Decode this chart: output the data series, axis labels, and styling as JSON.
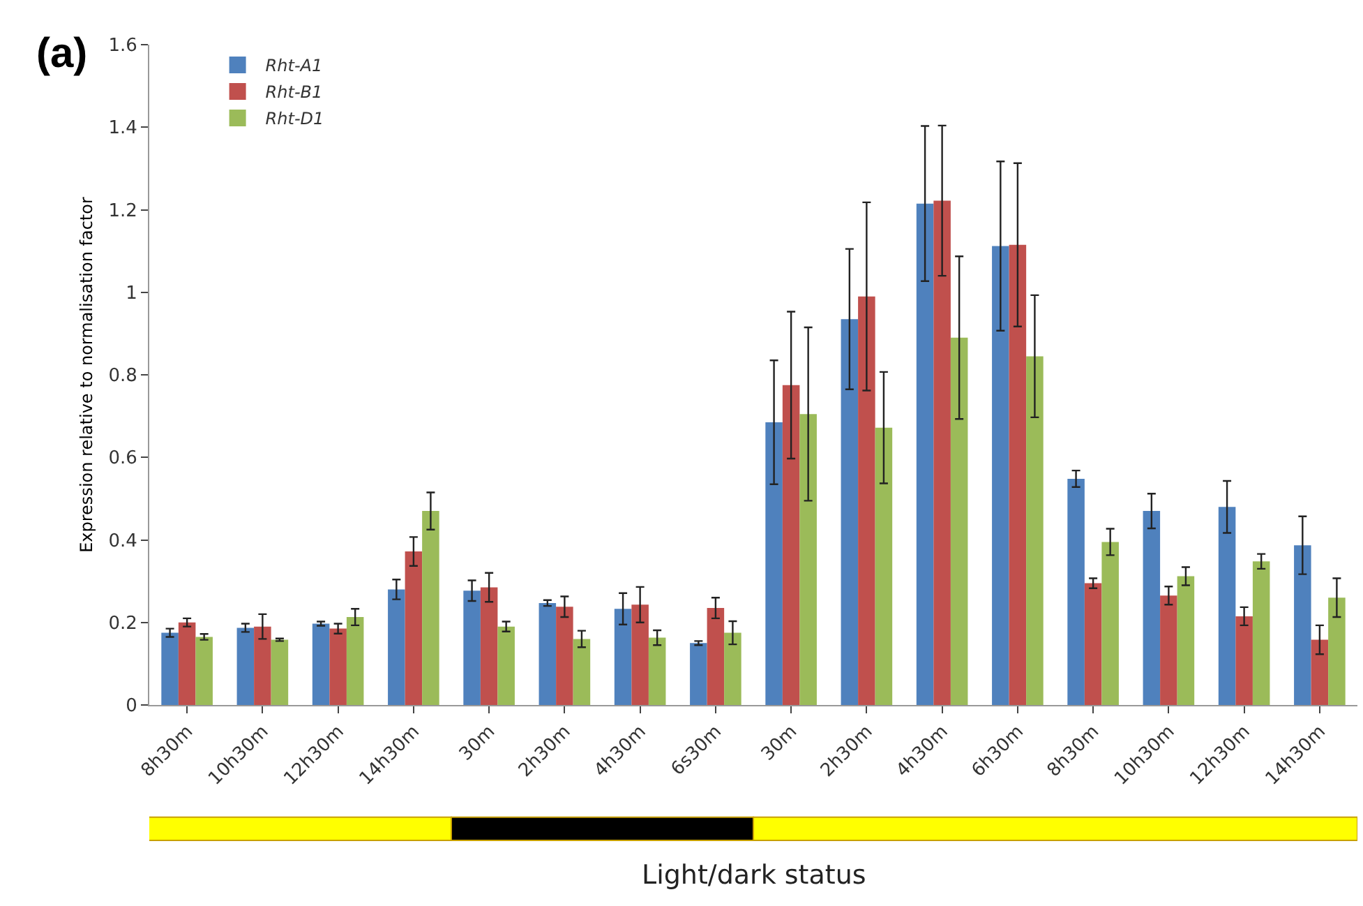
{
  "chart_data": {
    "type": "bar",
    "ylabel": "Expression relative to normalisation factor",
    "xlabel": "Light/dark status",
    "annotations": [
      "(a)"
    ],
    "categories": [
      "8h30m",
      "10h30m",
      "12h30m",
      "14h30m",
      "30m",
      "2h30m",
      "4h30m",
      "6s30m",
      "30m",
      "2h30m",
      "4h30m",
      "6h30m",
      "8h30m",
      "10h30m",
      "12h30m",
      "14h30m"
    ],
    "series": [
      {
        "name": "Rht-A1",
        "color": "#4f81bd",
        "values": [
          0.175,
          0.187,
          0.197,
          0.28,
          0.277,
          0.247,
          0.233,
          0.15,
          0.685,
          0.935,
          1.215,
          1.112,
          0.548,
          0.47,
          0.48,
          0.387
        ],
        "errors": [
          0.01,
          0.01,
          0.005,
          0.024,
          0.025,
          0.007,
          0.038,
          0.005,
          0.15,
          0.17,
          0.188,
          0.205,
          0.02,
          0.042,
          0.063,
          0.07
        ]
      },
      {
        "name": "Rht-B1",
        "color": "#c0504d",
        "values": [
          0.2,
          0.19,
          0.185,
          0.372,
          0.285,
          0.238,
          0.243,
          0.235,
          0.775,
          0.99,
          1.222,
          1.115,
          0.295,
          0.265,
          0.215,
          0.158
        ],
        "errors": [
          0.01,
          0.03,
          0.012,
          0.035,
          0.035,
          0.025,
          0.043,
          0.025,
          0.178,
          0.228,
          0.182,
          0.198,
          0.012,
          0.022,
          0.022,
          0.035
        ]
      },
      {
        "name": "Rht-D1",
        "color": "#9bbb59",
        "values": [
          0.165,
          0.158,
          0.213,
          0.47,
          0.19,
          0.16,
          0.163,
          0.175,
          0.705,
          0.672,
          0.89,
          0.845,
          0.395,
          0.312,
          0.348,
          0.26
        ],
        "errors": [
          0.007,
          0.003,
          0.02,
          0.045,
          0.012,
          0.02,
          0.018,
          0.028,
          0.21,
          0.135,
          0.197,
          0.148,
          0.032,
          0.022,
          0.018,
          0.047
        ]
      }
    ],
    "ylim": [
      0,
      1.6
    ],
    "yticks": [
      0,
      0.2,
      0.4,
      0.6,
      0.8,
      1,
      1.2,
      1.4,
      1.6
    ],
    "legend": "top left"
  }
}
